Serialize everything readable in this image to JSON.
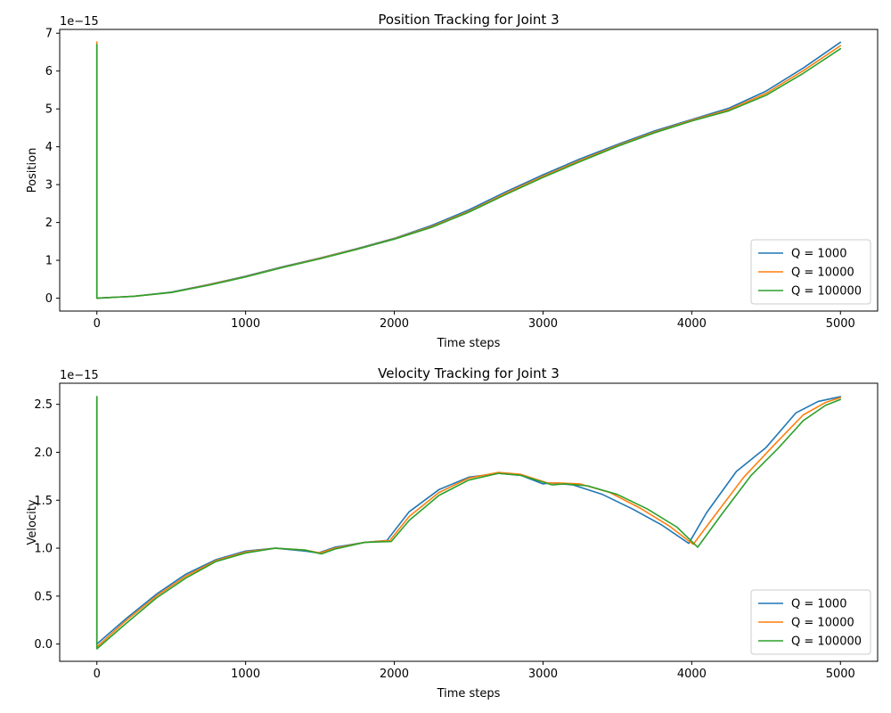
{
  "chart_data": [
    {
      "type": "line",
      "title": "Position Tracking for Joint 3",
      "xlabel": "Time steps",
      "ylabel": "Position",
      "y_offset_label": "1e−15",
      "xlim": [
        -250,
        5250
      ],
      "ylim": [
        -0.34,
        7.1
      ],
      "x_ticks": [
        0,
        1000,
        2000,
        3000,
        4000,
        5000
      ],
      "y_ticks": [
        0,
        1,
        2,
        3,
        4,
        5,
        6,
        7
      ],
      "grid": false,
      "legend_position": "lower right",
      "series": [
        {
          "name": "Q = 1000",
          "color": "#1f77b4",
          "points": [
            [
              0,
              6.72
            ],
            [
              0,
              0
            ],
            [
              100,
              0.02
            ],
            [
              250,
              0.05
            ],
            [
              500,
              0.16
            ],
            [
              750,
              0.36
            ],
            [
              1000,
              0.58
            ],
            [
              1250,
              0.83
            ],
            [
              1500,
              1.06
            ],
            [
              1750,
              1.31
            ],
            [
              2000,
              1.58
            ],
            [
              2250,
              1.92
            ],
            [
              2500,
              2.33
            ],
            [
              2750,
              2.81
            ],
            [
              3000,
              3.26
            ],
            [
              3250,
              3.68
            ],
            [
              3500,
              4.06
            ],
            [
              3750,
              4.42
            ],
            [
              4000,
              4.72
            ],
            [
              4250,
              5.02
            ],
            [
              4500,
              5.47
            ],
            [
              4750,
              6.08
            ],
            [
              5000,
              6.76
            ]
          ]
        },
        {
          "name": "Q = 10000",
          "color": "#ff7f0e",
          "points": [
            [
              0,
              6.77
            ],
            [
              0,
              0
            ],
            [
              100,
              0.02
            ],
            [
              250,
              0.05
            ],
            [
              500,
              0.15
            ],
            [
              750,
              0.35
            ],
            [
              1000,
              0.57
            ],
            [
              1250,
              0.82
            ],
            [
              1500,
              1.05
            ],
            [
              1750,
              1.3
            ],
            [
              2000,
              1.57
            ],
            [
              2250,
              1.89
            ],
            [
              2500,
              2.29
            ],
            [
              2750,
              2.77
            ],
            [
              3000,
              3.22
            ],
            [
              3250,
              3.64
            ],
            [
              3500,
              4.03
            ],
            [
              3750,
              4.39
            ],
            [
              4000,
              4.7
            ],
            [
              4250,
              4.98
            ],
            [
              4500,
              5.41
            ],
            [
              4750,
              6.01
            ],
            [
              5000,
              6.67
            ]
          ]
        },
        {
          "name": "Q = 100000",
          "color": "#2ca02c",
          "points": [
            [
              0,
              6.7
            ],
            [
              0,
              0
            ],
            [
              100,
              0.02
            ],
            [
              250,
              0.05
            ],
            [
              500,
              0.15
            ],
            [
              750,
              0.34
            ],
            [
              1000,
              0.56
            ],
            [
              1250,
              0.81
            ],
            [
              1500,
              1.04
            ],
            [
              1750,
              1.29
            ],
            [
              2000,
              1.56
            ],
            [
              2250,
              1.87
            ],
            [
              2500,
              2.27
            ],
            [
              2750,
              2.74
            ],
            [
              3000,
              3.19
            ],
            [
              3250,
              3.61
            ],
            [
              3500,
              4.01
            ],
            [
              3750,
              4.37
            ],
            [
              4000,
              4.68
            ],
            [
              4250,
              4.95
            ],
            [
              4500,
              5.36
            ],
            [
              4750,
              5.94
            ],
            [
              5000,
              6.59
            ]
          ]
        }
      ]
    },
    {
      "type": "line",
      "title": "Velocity Tracking for Joint 3",
      "xlabel": "Time steps",
      "ylabel": "Velocity",
      "y_offset_label": "1e−15",
      "xlim": [
        -250,
        5250
      ],
      "ylim": [
        -0.18,
        2.72
      ],
      "x_ticks": [
        0,
        1000,
        2000,
        3000,
        4000,
        5000
      ],
      "y_ticks": [
        0.0,
        0.5,
        1.0,
        1.5,
        2.0,
        2.5
      ],
      "y_tick_labels": [
        "0.0",
        "0.5",
        "1.0",
        "1.5",
        "2.0",
        "2.5"
      ],
      "grid": false,
      "legend_position": "lower right",
      "series": [
        {
          "name": "Q = 1000",
          "color": "#1f77b4",
          "points": [
            [
              0,
              2.58
            ],
            [
              0,
              0
            ],
            [
              200,
              0.27
            ],
            [
              400,
              0.52
            ],
            [
              600,
              0.73
            ],
            [
              800,
              0.88
            ],
            [
              1000,
              0.97
            ],
            [
              1200,
              1.0
            ],
            [
              1400,
              0.97
            ],
            [
              1490,
              0.95
            ],
            [
              1600,
              1.01
            ],
            [
              1800,
              1.06
            ],
            [
              1950,
              1.08
            ],
            [
              2100,
              1.38
            ],
            [
              2300,
              1.61
            ],
            [
              2500,
              1.74
            ],
            [
              2700,
              1.78
            ],
            [
              2850,
              1.76
            ],
            [
              3000,
              1.67
            ],
            [
              3050,
              1.68
            ],
            [
              3200,
              1.66
            ],
            [
              3400,
              1.56
            ],
            [
              3600,
              1.41
            ],
            [
              3800,
              1.24
            ],
            [
              3980,
              1.05
            ],
            [
              4100,
              1.37
            ],
            [
              4300,
              1.8
            ],
            [
              4500,
              2.05
            ],
            [
              4700,
              2.41
            ],
            [
              4850,
              2.53
            ],
            [
              5000,
              2.58
            ]
          ]
        },
        {
          "name": "Q = 10000",
          "color": "#ff7f0e",
          "points": [
            [
              0,
              2.58
            ],
            [
              0,
              -0.03
            ],
            [
              200,
              0.25
            ],
            [
              400,
              0.5
            ],
            [
              600,
              0.71
            ],
            [
              800,
              0.87
            ],
            [
              1000,
              0.96
            ],
            [
              1200,
              1.0
            ],
            [
              1400,
              0.98
            ],
            [
              1500,
              0.95
            ],
            [
              1600,
              1.0
            ],
            [
              1800,
              1.06
            ],
            [
              1970,
              1.08
            ],
            [
              2100,
              1.33
            ],
            [
              2300,
              1.58
            ],
            [
              2500,
              1.73
            ],
            [
              2700,
              1.79
            ],
            [
              2850,
              1.77
            ],
            [
              3030,
              1.68
            ],
            [
              3100,
              1.68
            ],
            [
              3250,
              1.67
            ],
            [
              3450,
              1.58
            ],
            [
              3650,
              1.42
            ],
            [
              3850,
              1.23
            ],
            [
              4010,
              1.04
            ],
            [
              4150,
              1.33
            ],
            [
              4350,
              1.74
            ],
            [
              4550,
              2.07
            ],
            [
              4750,
              2.39
            ],
            [
              4900,
              2.52
            ],
            [
              5000,
              2.57
            ]
          ]
        },
        {
          "name": "Q = 100000",
          "color": "#2ca02c",
          "points": [
            [
              0,
              2.58
            ],
            [
              0,
              -0.05
            ],
            [
              200,
              0.22
            ],
            [
              400,
              0.48
            ],
            [
              600,
              0.69
            ],
            [
              800,
              0.86
            ],
            [
              1000,
              0.95
            ],
            [
              1200,
              1.0
            ],
            [
              1400,
              0.98
            ],
            [
              1510,
              0.94
            ],
            [
              1600,
              0.99
            ],
            [
              1800,
              1.06
            ],
            [
              1980,
              1.07
            ],
            [
              2100,
              1.29
            ],
            [
              2300,
              1.55
            ],
            [
              2500,
              1.71
            ],
            [
              2700,
              1.78
            ],
            [
              2850,
              1.76
            ],
            [
              3060,
              1.66
            ],
            [
              3150,
              1.67
            ],
            [
              3300,
              1.65
            ],
            [
              3500,
              1.56
            ],
            [
              3700,
              1.41
            ],
            [
              3900,
              1.22
            ],
            [
              4040,
              1.01
            ],
            [
              4200,
              1.35
            ],
            [
              4400,
              1.76
            ],
            [
              4580,
              2.04
            ],
            [
              4750,
              2.33
            ],
            [
              4900,
              2.49
            ],
            [
              5000,
              2.55
            ]
          ]
        }
      ]
    }
  ]
}
